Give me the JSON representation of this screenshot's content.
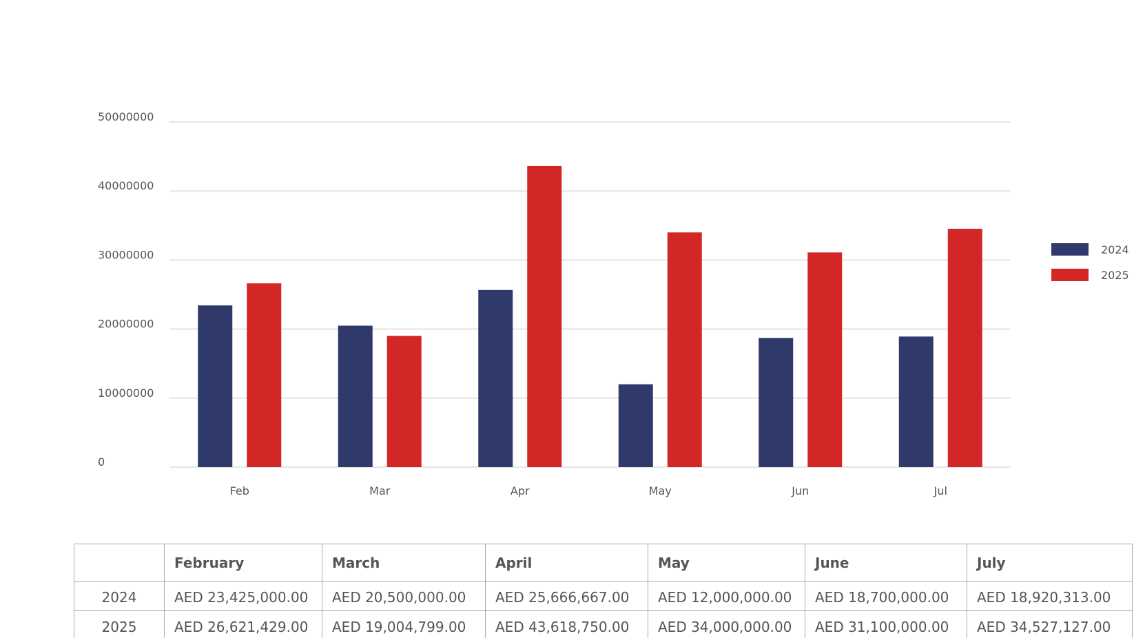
{
  "colors": {
    "s2024": "#2f3a6b",
    "s2025": "#d32627",
    "grid": "#e5e5e5"
  },
  "chart_data": {
    "type": "bar",
    "categories": [
      "Feb",
      "Mar",
      "Apr",
      "May",
      "Jun",
      "Jul"
    ],
    "series": [
      {
        "name": "2024",
        "values": [
          23425000,
          20500000,
          25666667,
          12000000,
          18700000,
          18920313
        ]
      },
      {
        "name": "2025",
        "values": [
          26621429,
          19004799,
          43618750,
          34000000,
          31100000,
          34527127
        ]
      }
    ],
    "yticks": [
      0,
      10000000,
      20000000,
      30000000,
      40000000,
      50000000
    ],
    "ylim": [
      0,
      50000000
    ],
    "grid": true,
    "legend": "right",
    "title": "",
    "xlabel": "",
    "ylabel": ""
  },
  "table": {
    "headers": [
      "",
      "February",
      "March",
      "April",
      "May",
      "June",
      "July"
    ],
    "rows": [
      {
        "label": "2024",
        "cells": [
          "AED 23,425,000.00",
          "AED 20,500,000.00",
          "AED 25,666,667.00",
          "AED 12,000,000.00",
          "AED 18,700,000.00",
          "AED 18,920,313.00"
        ]
      },
      {
        "label": "2025",
        "cells": [
          "AED 26,621,429.00",
          "AED 19,004,799.00",
          "AED 43,618,750.00",
          "AED 34,000,000.00",
          "AED 31,100,000.00",
          "AED 34,527,127.00"
        ]
      }
    ]
  }
}
